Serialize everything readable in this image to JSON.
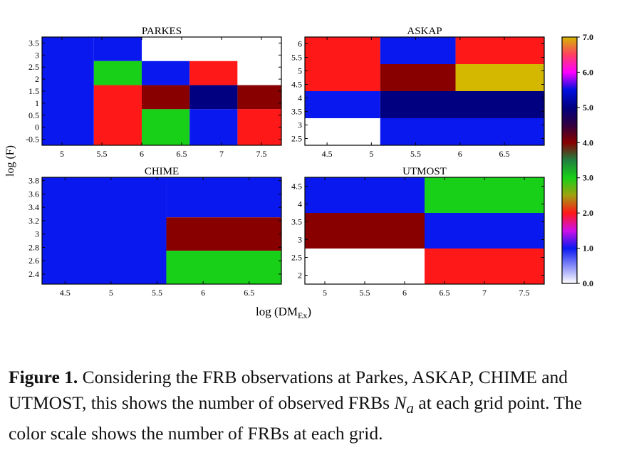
{
  "caption": {
    "label": "Figure 1.",
    "text_before": " Considering the FRB observations at Parkes, ASKAP, CHIME and UTMOST, this shows the number of observed FRBs ",
    "variable": "N",
    "variable_sub": "a",
    "text_after": " at each grid point. The color scale shows the number of FRBs at each grid."
  },
  "axes": {
    "shared_xlabel": "log (DM",
    "shared_xlabel_sub": "Ex",
    "shared_xlabel_close": ")",
    "shared_ylabel": "log (F)"
  },
  "colorbar": {
    "range": [
      0,
      7
    ],
    "ticks": [
      "7.0",
      "6.0",
      "5.0",
      "4.0",
      "3.0",
      "2.0",
      "1.0",
      "0.0"
    ],
    "tick_values": [
      7,
      6,
      5,
      4,
      3,
      2,
      1,
      0
    ],
    "stops": [
      {
        "value": 0.0,
        "color": "#ffffff"
      },
      {
        "value": 1.0,
        "color": "#0a18f0"
      },
      {
        "value": 1.5,
        "color": "#d010e8"
      },
      {
        "value": 2.0,
        "color": "#ff1818"
      },
      {
        "value": 2.5,
        "color": "#a0a010"
      },
      {
        "value": 3.0,
        "color": "#18d018"
      },
      {
        "value": 3.5,
        "color": "#208040"
      },
      {
        "value": 4.0,
        "color": "#880000"
      },
      {
        "value": 4.5,
        "color": "#300040"
      },
      {
        "value": 5.0,
        "color": "#000080"
      },
      {
        "value": 5.5,
        "color": "#0010e0"
      },
      {
        "value": 6.0,
        "color": "#ff00ff"
      },
      {
        "value": 6.5,
        "color": "#ff4060"
      },
      {
        "value": 7.0,
        "color": "#d4b800"
      }
    ]
  },
  "chart_data": [
    {
      "type": "heatmap",
      "title": "PARKES",
      "xlim": [
        4.75,
        7.75
      ],
      "ylim": [
        -0.75,
        3.75
      ],
      "xticks": [
        "5",
        "5.5",
        "6",
        "6.5",
        "7",
        "7.5"
      ],
      "xtick_values": [
        5,
        5.5,
        6,
        6.5,
        7,
        7.5
      ],
      "yticks": [
        "3.5",
        "3",
        "2.5",
        "2",
        "1.5",
        "1",
        "0.5",
        "0",
        "-0.5"
      ],
      "ytick_values": [
        3.5,
        3,
        2.5,
        2,
        1.5,
        1,
        0.5,
        0,
        -0.5
      ],
      "cells": [
        {
          "x": [
            4.75,
            5.4
          ],
          "y": [
            -0.75,
            3.75
          ],
          "value": 1
        },
        {
          "x": [
            5.4,
            6.0
          ],
          "y": [
            2.75,
            3.75
          ],
          "value": 1
        },
        {
          "x": [
            6.0,
            7.75
          ],
          "y": [
            2.75,
            3.75
          ],
          "value": 0
        },
        {
          "x": [
            5.4,
            6.0
          ],
          "y": [
            1.75,
            2.75
          ],
          "value": 3
        },
        {
          "x": [
            6.0,
            6.6
          ],
          "y": [
            1.75,
            2.75
          ],
          "value": 1
        },
        {
          "x": [
            6.6,
            7.2
          ],
          "y": [
            1.75,
            2.75
          ],
          "value": 2
        },
        {
          "x": [
            7.2,
            7.75
          ],
          "y": [
            1.75,
            2.75
          ],
          "value": 0
        },
        {
          "x": [
            5.4,
            6.0
          ],
          "y": [
            -0.75,
            1.75
          ],
          "value": 2
        },
        {
          "x": [
            6.0,
            6.6
          ],
          "y": [
            0.75,
            1.75
          ],
          "value": 4
        },
        {
          "x": [
            6.6,
            7.2
          ],
          "y": [
            0.75,
            1.75
          ],
          "value": 5
        },
        {
          "x": [
            7.2,
            7.75
          ],
          "y": [
            0.75,
            1.75
          ],
          "value": 4
        },
        {
          "x": [
            6.0,
            6.6
          ],
          "y": [
            -0.75,
            0.75
          ],
          "value": 3
        },
        {
          "x": [
            6.6,
            7.2
          ],
          "y": [
            -0.75,
            0.75
          ],
          "value": 1
        },
        {
          "x": [
            7.2,
            7.75
          ],
          "y": [
            -0.75,
            0.75
          ],
          "value": 2
        }
      ]
    },
    {
      "type": "heatmap",
      "title": "ASKAP",
      "xlim": [
        4.25,
        6.95
      ],
      "ylim": [
        2.25,
        6.25
      ],
      "xticks": [
        "4.5",
        "5",
        "5.5",
        "6",
        "6.5"
      ],
      "xtick_values": [
        4.5,
        5,
        5.5,
        6,
        6.5
      ],
      "yticks": [
        "6",
        "5.5",
        "5",
        "4.5",
        "4",
        "3.5",
        "3",
        "2.5"
      ],
      "ytick_values": [
        6,
        5.5,
        5,
        4.5,
        4,
        3.5,
        3,
        2.5
      ],
      "cells": [
        {
          "x": [
            4.25,
            5.1
          ],
          "y": [
            4.25,
            6.25
          ],
          "value": 2
        },
        {
          "x": [
            5.1,
            5.95
          ],
          "y": [
            5.25,
            6.25
          ],
          "value": 1
        },
        {
          "x": [
            5.95,
            6.95
          ],
          "y": [
            5.25,
            6.25
          ],
          "value": 2
        },
        {
          "x": [
            5.1,
            5.95
          ],
          "y": [
            4.25,
            5.25
          ],
          "value": 4
        },
        {
          "x": [
            5.95,
            6.95
          ],
          "y": [
            4.25,
            5.25
          ],
          "value": 7
        },
        {
          "x": [
            4.25,
            5.1
          ],
          "y": [
            3.25,
            4.25
          ],
          "value": 1
        },
        {
          "x": [
            5.1,
            6.95
          ],
          "y": [
            3.25,
            4.25
          ],
          "value": 5
        },
        {
          "x": [
            4.25,
            5.1
          ],
          "y": [
            2.25,
            3.25
          ],
          "value": 0
        },
        {
          "x": [
            5.1,
            6.95
          ],
          "y": [
            2.25,
            3.25
          ],
          "value": 1
        }
      ]
    },
    {
      "type": "heatmap",
      "title": "CHIME",
      "xlim": [
        4.25,
        6.85
      ],
      "ylim": [
        2.25,
        3.85
      ],
      "xticks": [
        "4.5",
        "5",
        "5.5",
        "6",
        "6.5"
      ],
      "xtick_values": [
        4.5,
        5,
        5.5,
        6,
        6.5
      ],
      "yticks": [
        "3.8",
        "3.6",
        "3.4",
        "3.2",
        "3",
        "2.8",
        "2.6",
        "2.4"
      ],
      "ytick_values": [
        3.8,
        3.6,
        3.4,
        3.2,
        3,
        2.8,
        2.6,
        2.4
      ],
      "cells": [
        {
          "x": [
            4.25,
            5.6
          ],
          "y": [
            2.25,
            3.85
          ],
          "value": 1
        },
        {
          "x": [
            5.6,
            6.85
          ],
          "y": [
            3.25,
            3.85
          ],
          "value": 1
        },
        {
          "x": [
            5.6,
            6.85
          ],
          "y": [
            2.75,
            3.25
          ],
          "value": 4
        },
        {
          "x": [
            5.6,
            6.85
          ],
          "y": [
            2.25,
            2.75
          ],
          "value": 3
        }
      ]
    },
    {
      "type": "heatmap",
      "title": "UTMOST",
      "xlim": [
        4.75,
        7.75
      ],
      "ylim": [
        1.75,
        4.75
      ],
      "xticks": [
        "5",
        "5.5",
        "6",
        "6.5",
        "7",
        "7.5"
      ],
      "xtick_values": [
        5,
        5.5,
        6,
        6.5,
        7,
        7.5
      ],
      "yticks": [
        "4.5",
        "4",
        "3.5",
        "3",
        "2.5",
        "2"
      ],
      "ytick_values": [
        4.5,
        4,
        3.5,
        3,
        2.5,
        2
      ],
      "cells": [
        {
          "x": [
            4.75,
            6.25
          ],
          "y": [
            3.75,
            4.75
          ],
          "value": 1
        },
        {
          "x": [
            6.25,
            7.75
          ],
          "y": [
            3.75,
            4.75
          ],
          "value": 3
        },
        {
          "x": [
            4.75,
            6.25
          ],
          "y": [
            2.75,
            3.75
          ],
          "value": 4
        },
        {
          "x": [
            6.25,
            7.75
          ],
          "y": [
            2.75,
            3.75
          ],
          "value": 1
        },
        {
          "x": [
            4.75,
            6.25
          ],
          "y": [
            1.75,
            2.75
          ],
          "value": 0
        },
        {
          "x": [
            6.25,
            7.75
          ],
          "y": [
            1.75,
            2.75
          ],
          "value": 2
        }
      ]
    }
  ]
}
